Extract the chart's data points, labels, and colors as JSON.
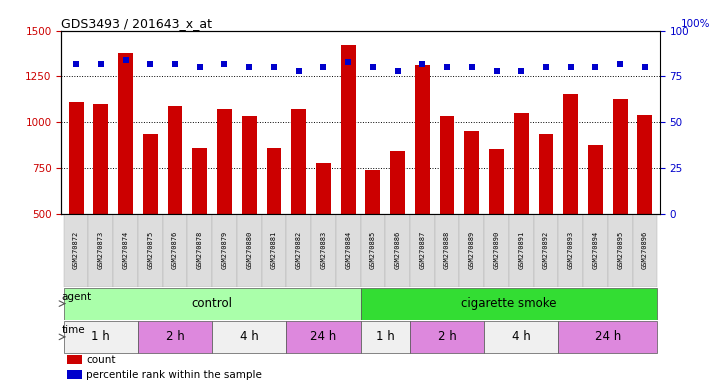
{
  "title": "GDS3493 / 201643_x_at",
  "samples": [
    "GSM270872",
    "GSM270873",
    "GSM270874",
    "GSM270875",
    "GSM270876",
    "GSM270878",
    "GSM270879",
    "GSM270880",
    "GSM270881",
    "GSM270882",
    "GSM270883",
    "GSM270884",
    "GSM270885",
    "GSM270886",
    "GSM270887",
    "GSM270888",
    "GSM270889",
    "GSM270890",
    "GSM270891",
    "GSM270892",
    "GSM270893",
    "GSM270894",
    "GSM270895",
    "GSM270896"
  ],
  "counts": [
    1108,
    1100,
    1380,
    935,
    1090,
    860,
    1075,
    1035,
    860,
    1075,
    780,
    1420,
    740,
    845,
    1310,
    1035,
    950,
    855,
    1050,
    935,
    1155,
    875,
    1125,
    1040
  ],
  "percentiles": [
    82,
    82,
    84,
    82,
    82,
    80,
    82,
    80,
    80,
    78,
    80,
    83,
    80,
    78,
    82,
    80,
    80,
    78,
    78,
    80,
    80,
    80,
    82,
    80
  ],
  "bar_color": "#cc0000",
  "dot_color": "#0000cc",
  "ylim_left": [
    500,
    1500
  ],
  "ylim_right": [
    0,
    100
  ],
  "yticks_left": [
    500,
    750,
    1000,
    1250,
    1500
  ],
  "yticks_right": [
    0,
    25,
    50,
    75,
    100
  ],
  "agent_groups": [
    {
      "label": "control",
      "start": 0,
      "end": 11,
      "color": "#aaffaa"
    },
    {
      "label": "cigarette smoke",
      "start": 12,
      "end": 23,
      "color": "#33dd33"
    }
  ],
  "time_groups": [
    {
      "label": "1 h",
      "start": 0,
      "end": 2,
      "color": "#f0f0f0"
    },
    {
      "label": "2 h",
      "start": 3,
      "end": 5,
      "color": "#dd88dd"
    },
    {
      "label": "4 h",
      "start": 6,
      "end": 8,
      "color": "#f0f0f0"
    },
    {
      "label": "24 h",
      "start": 9,
      "end": 11,
      "color": "#dd88dd"
    },
    {
      "label": "1 h",
      "start": 12,
      "end": 13,
      "color": "#f0f0f0"
    },
    {
      "label": "2 h",
      "start": 14,
      "end": 16,
      "color": "#dd88dd"
    },
    {
      "label": "4 h",
      "start": 17,
      "end": 19,
      "color": "#f0f0f0"
    },
    {
      "label": "24 h",
      "start": 20,
      "end": 23,
      "color": "#dd88dd"
    }
  ],
  "legend_items": [
    {
      "label": "count",
      "color": "#cc0000"
    },
    {
      "label": "percentile rank within the sample",
      "color": "#0000cc"
    }
  ],
  "bg_color": "#ffffff",
  "tick_color_left": "#cc0000",
  "tick_color_right": "#0000cc",
  "label_color_left": "agent",
  "figsize": [
    7.21,
    3.84
  ],
  "dpi": 100
}
